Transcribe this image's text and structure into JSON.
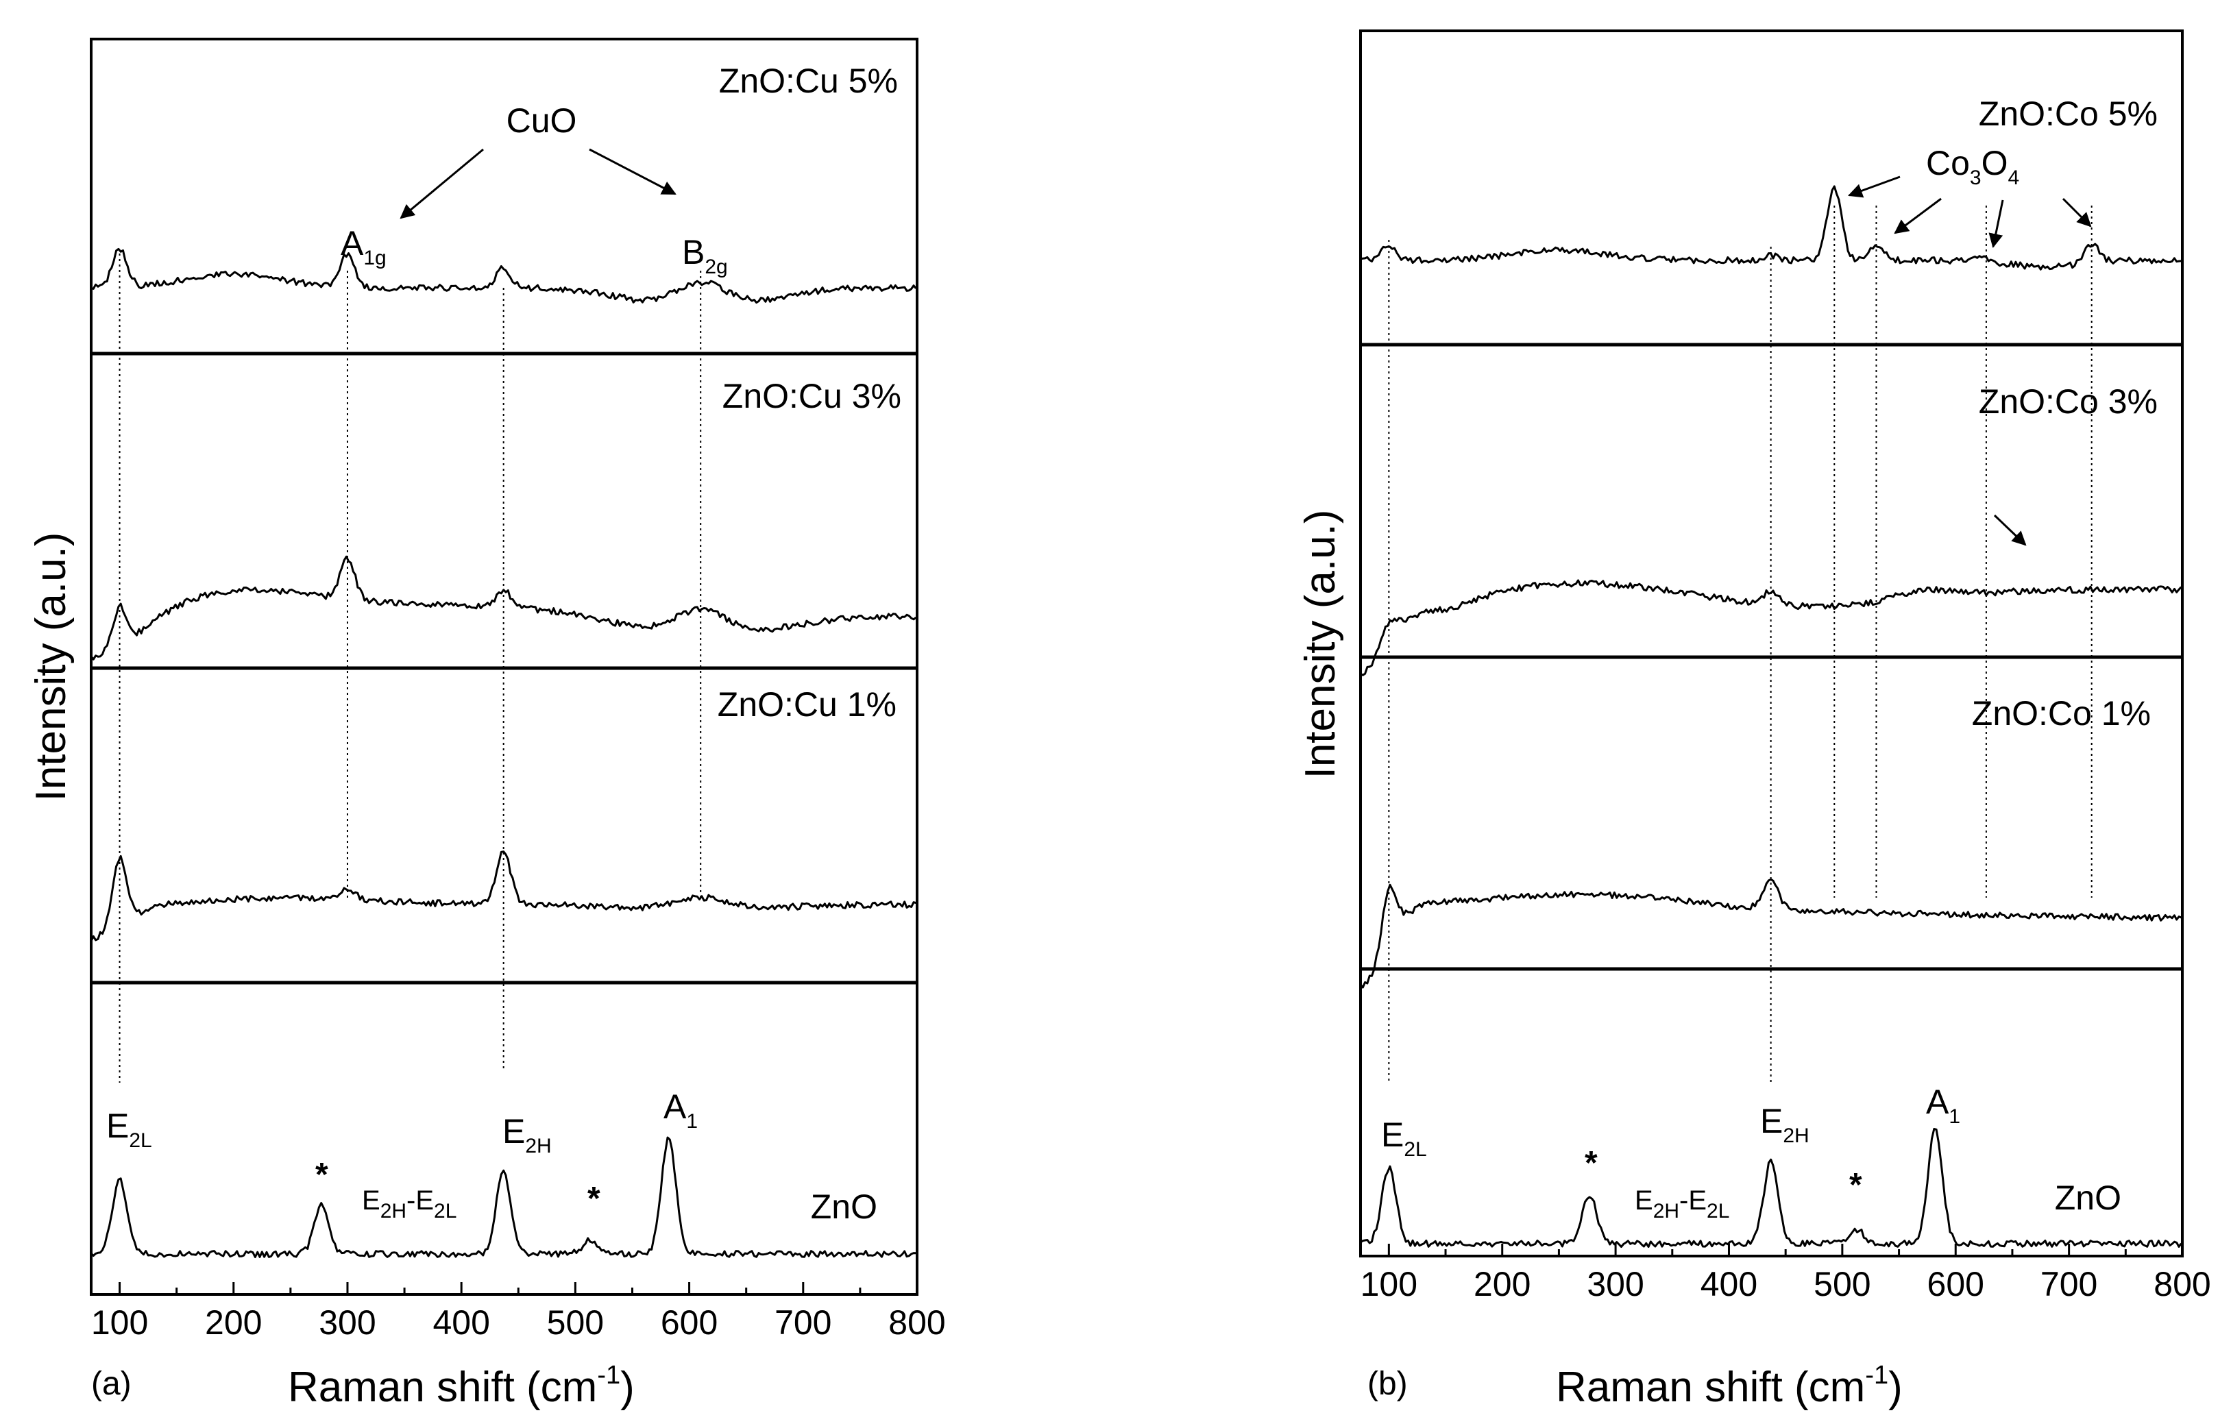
{
  "chart_data": [
    {
      "type": "line",
      "panel_label": "(a)",
      "xlabel": "Raman shift (cm",
      "xlabel_sup": "-1",
      "xlabel_close": ")",
      "ylabel": "Intensity (a.u.)",
      "xlim": [
        75,
        800
      ],
      "x_ticks": [
        100,
        200,
        300,
        400,
        500,
        600,
        700,
        800
      ],
      "series": [
        {
          "name": "ZnO:Cu 5%",
          "peaks": [
            [
              100,
              0.35
            ],
            [
              300,
              0.3
            ],
            [
              437,
              0.18
            ],
            [
              610,
              0.3
            ]
          ]
        },
        {
          "name": "ZnO:Cu 3%",
          "peaks": [
            [
              100,
              0.35
            ],
            [
              300,
              0.35
            ],
            [
              437,
              0.15
            ],
            [
              610,
              0.25
            ]
          ]
        },
        {
          "name": "ZnO:Cu 1%",
          "peaks": [
            [
              100,
              0.6
            ],
            [
              300,
              0.1
            ],
            [
              437,
              0.45
            ],
            [
              610,
              0.12
            ]
          ]
        },
        {
          "name": "ZnO",
          "peaks": [
            [
              100,
              0.55
            ],
            [
              277,
              0.35
            ],
            [
              437,
              0.6
            ],
            [
              513,
              0.1
            ],
            [
              582,
              0.85
            ]
          ]
        }
      ],
      "guide_x": [
        100,
        300,
        437,
        610
      ],
      "annotations": {
        "cuo": "CuO",
        "a1g": "A",
        "a1g_sub": "1g",
        "b2g": "B",
        "b2g_sub": "2g",
        "e2l": "E",
        "e2l_sub": "2L",
        "e2h": "E",
        "e2h_sub": "2H",
        "a1": "A",
        "a1_sub": "1",
        "diff_e": "E",
        "diff_sub1": "2H",
        "diff_mid": "-E",
        "diff_sub2": "2L",
        "star": "*"
      }
    },
    {
      "type": "line",
      "panel_label": "(b)",
      "xlabel": "Raman shift (cm",
      "xlabel_sup": "-1",
      "xlabel_close": ")",
      "ylabel": "Intensity (a.u.)",
      "xlim": [
        75,
        800
      ],
      "x_ticks": [
        100,
        200,
        300,
        400,
        500,
        600,
        700,
        800
      ],
      "series": [
        {
          "name": "ZnO:Co 5%",
          "peaks": [
            [
              100,
              0.15
            ],
            [
              437,
              0.05
            ],
            [
              493,
              0.75
            ],
            [
              530,
              0.15
            ],
            [
              620,
              0.05
            ],
            [
              720,
              0.2
            ]
          ]
        },
        {
          "name": "ZnO:Co 3%",
          "peaks": [
            [
              100,
              0.2
            ],
            [
              437,
              0.15
            ],
            [
              570,
              0.1
            ]
          ]
        },
        {
          "name": "ZnO:Co 1%",
          "peaks": [
            [
              100,
              0.55
            ],
            [
              437,
              0.3
            ]
          ]
        },
        {
          "name": "ZnO",
          "peaks": [
            [
              100,
              0.55
            ],
            [
              277,
              0.35
            ],
            [
              437,
              0.6
            ],
            [
              513,
              0.1
            ],
            [
              582,
              0.85
            ]
          ]
        }
      ],
      "guide_x": [
        100,
        437,
        493,
        530,
        627,
        720
      ],
      "annotations": {
        "co": "Co",
        "co_sub1": "3",
        "co_o": "O",
        "co_sub2": "4",
        "e2l": "E",
        "e2l_sub": "2L",
        "e2h": "E",
        "e2h_sub": "2H",
        "a1": "A",
        "a1_sub": "1",
        "diff_e": "E",
        "diff_sub1": "2H",
        "diff_mid": "-E",
        "diff_sub2": "2L",
        "star": "*"
      }
    }
  ]
}
